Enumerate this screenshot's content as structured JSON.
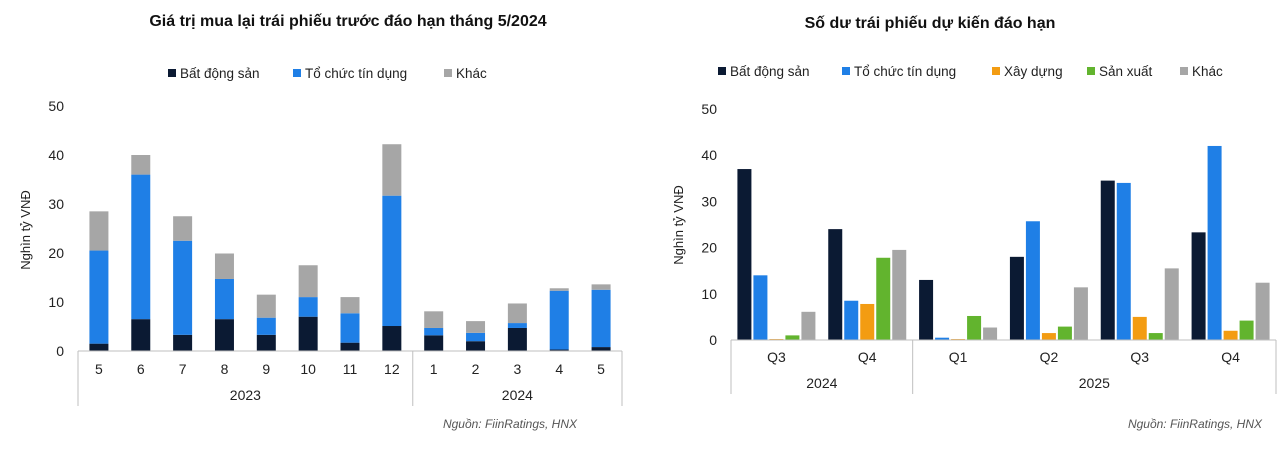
{
  "colors": {
    "real_estate": "#0b1a33",
    "credit": "#1f7fe6",
    "construction": "#f39c12",
    "manufacturing": "#62b42e",
    "other": "#a6a6a6",
    "axis": "#bfbfbf"
  },
  "chart_data": [
    {
      "type": "bar",
      "stacked": true,
      "title": "Giá trị mua lại trái phiếu trước đáo hạn tháng 5/2024",
      "ylabel": "Nghìn tỷ VNĐ",
      "ylim": [
        0,
        50
      ],
      "yticks": [
        "0",
        "10",
        "20",
        "30",
        "40",
        "50"
      ],
      "categories": [
        "5",
        "6",
        "7",
        "8",
        "9",
        "10",
        "11",
        "12",
        "1",
        "2",
        "3",
        "4",
        "5"
      ],
      "groups": [
        {
          "label": "2023",
          "count": 8
        },
        {
          "label": "2024",
          "count": 5
        }
      ],
      "series": [
        {
          "name": "Bất động sản",
          "color_key": "real_estate",
          "values": [
            1.5,
            6.5,
            3.3,
            6.5,
            3.3,
            7.0,
            1.7,
            5.1,
            3.2,
            2.0,
            4.7,
            0.3,
            0.8
          ]
        },
        {
          "name": "Tổ chức tín dụng",
          "color_key": "credit",
          "values": [
            19.0,
            29.5,
            19.2,
            8.2,
            3.5,
            4.0,
            6.0,
            26.6,
            1.5,
            1.7,
            1.0,
            12.0,
            11.7
          ]
        },
        {
          "name": "Khác",
          "color_key": "other",
          "values": [
            8.0,
            4.0,
            5.0,
            5.2,
            4.7,
            6.5,
            3.3,
            10.5,
            3.4,
            2.4,
            4.0,
            0.5,
            1.1
          ]
        }
      ],
      "legend": "top",
      "grid": false,
      "source": "Nguồn: FiinRatings, HNX"
    },
    {
      "type": "bar",
      "stacked": false,
      "title": "Số dư trái phiếu dự kiến đáo hạn",
      "ylabel": "Nghìn tỷ VNĐ",
      "ylim": [
        0,
        50
      ],
      "yticks": [
        "0",
        "10",
        "20",
        "30",
        "40",
        "50"
      ],
      "categories": [
        "Q3",
        "Q4",
        "Q1",
        "Q2",
        "Q3",
        "Q4"
      ],
      "groups": [
        {
          "label": "2024",
          "count": 2
        },
        {
          "label": "2025",
          "count": 4
        }
      ],
      "series": [
        {
          "name": "Bất động sản",
          "color_key": "real_estate",
          "values": [
            37.0,
            24.0,
            13.0,
            18.0,
            34.5,
            23.3
          ]
        },
        {
          "name": "Tổ chức tín dụng",
          "color_key": "credit",
          "values": [
            14.0,
            8.5,
            0.5,
            25.7,
            34.0,
            42.0
          ]
        },
        {
          "name": "Xây dựng",
          "color_key": "construction",
          "values": [
            0.2,
            7.8,
            0.2,
            1.5,
            5.0,
            2.0
          ]
        },
        {
          "name": "Sản xuất",
          "color_key": "manufacturing",
          "values": [
            1.0,
            17.8,
            5.2,
            2.9,
            1.5,
            4.2
          ]
        },
        {
          "name": "Khác",
          "color_key": "other",
          "values": [
            6.1,
            19.5,
            2.7,
            11.4,
            15.5,
            12.4
          ]
        }
      ],
      "legend": "top",
      "grid": false,
      "source": "Nguồn: FiinRatings, HNX"
    }
  ]
}
